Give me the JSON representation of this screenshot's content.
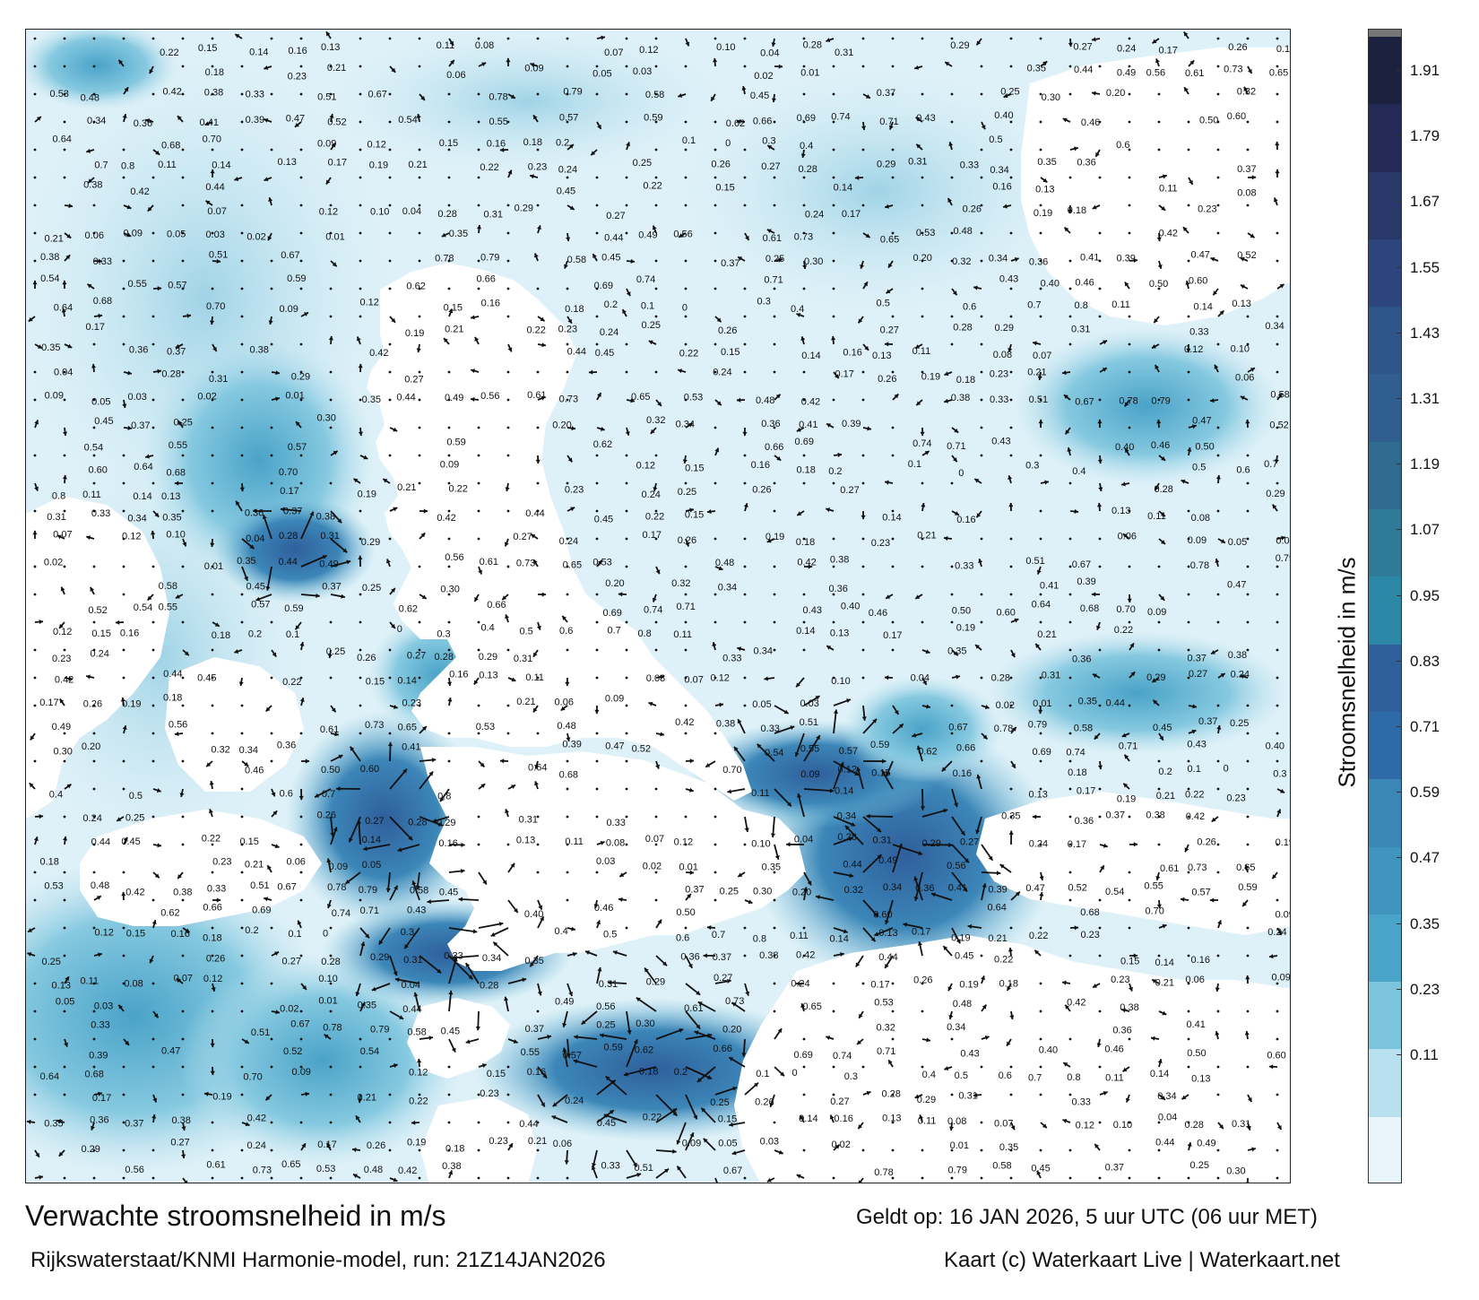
{
  "map": {
    "colors": {
      "land": "#ffffff",
      "frame": "#222222",
      "arrow": "#111111"
    }
  },
  "colorbar": {
    "title": "Stroomsnelheid in m/s",
    "ticks": [
      "1.91",
      "1.79",
      "1.67",
      "1.55",
      "1.43",
      "1.31",
      "1.19",
      "1.07",
      "0.95",
      "0.83",
      "0.71",
      "0.59",
      "0.47",
      "0.35",
      "0.23",
      "0.11"
    ],
    "colors": [
      "#1c2140",
      "#232a55",
      "#283868",
      "#2c457c",
      "#2f568b",
      "#305f8f",
      "#2f6a8f",
      "#2e7a97",
      "#2d87a6",
      "#2e5f9a",
      "#2f6aa8",
      "#3a86b4",
      "#3f95be",
      "#4aa3c8",
      "#7cc3dc",
      "#b9e0ee",
      "#e8f5fa"
    ]
  },
  "speed_labels": [
    {
      "v": "0.22"
    },
    {
      "v": "0.15"
    },
    {
      "v": "0.14"
    },
    {
      "v": "0.16"
    },
    {
      "v": "0.13"
    },
    {
      "v": "0.11"
    },
    {
      "v": "0.08"
    },
    {
      "v": "0.07"
    },
    {
      "v": "0.12"
    },
    {
      "v": "0.10"
    },
    {
      "v": "0.04"
    },
    {
      "v": "0.28"
    },
    {
      "v": "0.31"
    },
    {
      "v": "0.29"
    },
    {
      "v": "0.27"
    },
    {
      "v": "0.24"
    },
    {
      "v": "0.17"
    },
    {
      "v": "0.26"
    },
    {
      "v": "0.19"
    },
    {
      "v": "0.18"
    },
    {
      "v": "0.23"
    },
    {
      "v": "0.21"
    },
    {
      "v": "0.06"
    },
    {
      "v": "0.09"
    },
    {
      "v": "0.05"
    },
    {
      "v": "0.03"
    },
    {
      "v": "0.02"
    },
    {
      "v": "0.01"
    },
    {
      "v": "0.35"
    },
    {
      "v": "0.44"
    },
    {
      "v": "0.49"
    },
    {
      "v": "0.56"
    },
    {
      "v": "0.61"
    },
    {
      "v": "0.73"
    },
    {
      "v": "0.65"
    },
    {
      "v": "0.53"
    },
    {
      "v": "0.48"
    },
    {
      "v": "0.42"
    },
    {
      "v": "0.38"
    },
    {
      "v": "0.33"
    },
    {
      "v": "0.51"
    },
    {
      "v": "0.67"
    },
    {
      "v": "0.78"
    },
    {
      "v": "0.79"
    },
    {
      "v": "0.58"
    },
    {
      "v": "0.45"
    },
    {
      "v": "0.37"
    },
    {
      "v": "0.25"
    },
    {
      "v": "0.30"
    },
    {
      "v": "0.20"
    },
    {
      "v": "0.32"
    },
    {
      "v": "0.34"
    },
    {
      "v": "0.36"
    },
    {
      "v": "0.41"
    },
    {
      "v": "0.39"
    },
    {
      "v": "0.47"
    },
    {
      "v": "0.52"
    },
    {
      "v": "0.54"
    },
    {
      "v": "0.55"
    },
    {
      "v": "0.57"
    },
    {
      "v": "0.59"
    },
    {
      "v": "0.62"
    },
    {
      "v": "0.66"
    },
    {
      "v": "0.69"
    },
    {
      "v": "0.74"
    },
    {
      "v": "0.71"
    },
    {
      "v": "0.43"
    },
    {
      "v": "0.40"
    },
    {
      "v": "0.46"
    },
    {
      "v": "0.50"
    },
    {
      "v": "0.60"
    },
    {
      "v": "0.64"
    },
    {
      "v": "0.68"
    },
    {
      "v": "0.70"
    },
    {
      "v": "0.09"
    },
    {
      "v": "0.12"
    },
    {
      "v": "0.15"
    },
    {
      "v": "0.16"
    },
    {
      "v": "0.18"
    },
    {
      "v": "0.2"
    },
    {
      "v": "0.1"
    },
    {
      "v": "0"
    },
    {
      "v": "0.3"
    },
    {
      "v": "0.4"
    },
    {
      "v": "0.5"
    },
    {
      "v": "0.6"
    },
    {
      "v": "0.7"
    },
    {
      "v": "0.8"
    },
    {
      "v": "0.11"
    },
    {
      "v": "0.14"
    },
    {
      "v": "0.13"
    },
    {
      "v": "0.17"
    },
    {
      "v": "0.19"
    },
    {
      "v": "0.21"
    },
    {
      "v": "0.22"
    },
    {
      "v": "0.23"
    },
    {
      "v": "0.24"
    },
    {
      "v": "0.25"
    },
    {
      "v": "0.26"
    },
    {
      "v": "0.27"
    },
    {
      "v": "0.28"
    },
    {
      "v": "0.29"
    },
    {
      "v": "0.31"
    },
    {
      "v": "0.33"
    },
    {
      "v": "0.34"
    },
    {
      "v": "0.35"
    },
    {
      "v": "0.36"
    },
    {
      "v": "0.37"
    },
    {
      "v": "0.38"
    },
    {
      "v": "0.42"
    },
    {
      "v": "0.44"
    },
    {
      "v": "0.45"
    }
  ],
  "footer": {
    "title": "Verwachte stroomsnelheid in m/s",
    "valid": "Geldt op: 16 JAN 2026, 5 uur UTC (06 uur MET)",
    "model": "Rijkswaterstaat/KNMI Harmonie-model, run: 21Z14JAN2026",
    "credit": "Kaart (c) Waterkaart Live | Waterkaart.net"
  }
}
